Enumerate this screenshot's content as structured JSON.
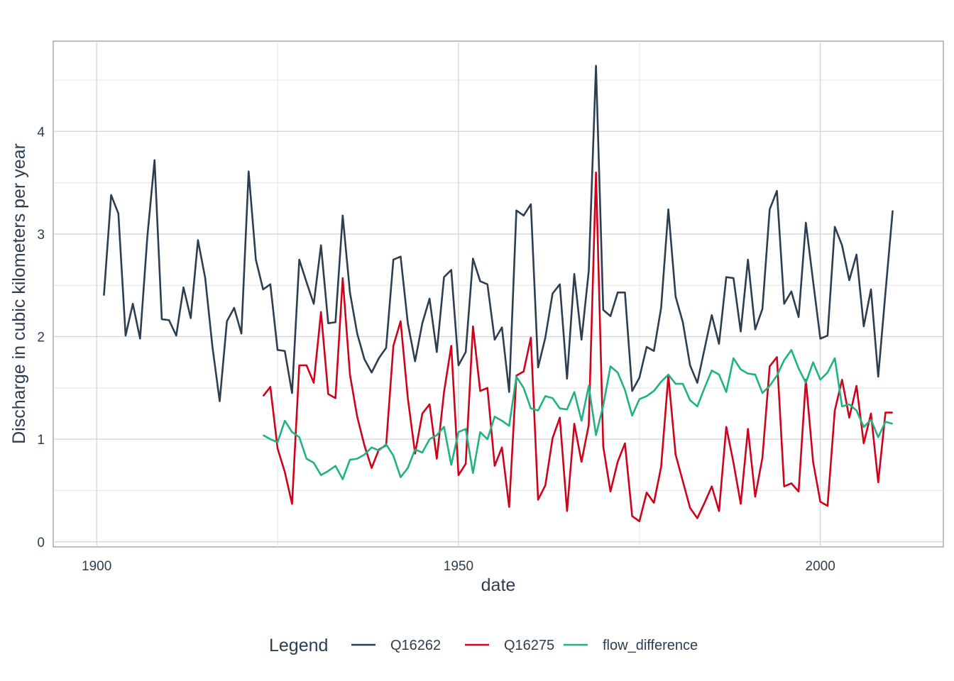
{
  "chart_data": {
    "type": "line",
    "xlabel": "date",
    "ylabel": "Discharge in cubic kilometers per year",
    "xlim": [
      1894,
      2017
    ],
    "ylim": [
      -0.05,
      4.88
    ],
    "x_ticks": [
      1900,
      1950,
      2000
    ],
    "x_tick_labels": [
      "1900",
      "1950",
      "2000"
    ],
    "y_ticks": [
      0,
      1,
      2,
      3,
      4
    ],
    "y_tick_labels": [
      "0",
      "1",
      "2",
      "3",
      "4"
    ],
    "grid": true,
    "legend": {
      "title": "Legend",
      "position": "bottom"
    },
    "series": [
      {
        "name": "Q16262",
        "color": "#2c3e50",
        "x": [
          1901,
          1902,
          1903,
          1904,
          1905,
          1906,
          1907,
          1908,
          1909,
          1910,
          1911,
          1912,
          1913,
          1914,
          1915,
          1916,
          1917,
          1918,
          1919,
          1920,
          1921,
          1922,
          1923,
          1924,
          1925,
          1926,
          1927,
          1928,
          1929,
          1930,
          1931,
          1932,
          1933,
          1934,
          1935,
          1936,
          1937,
          1938,
          1939,
          1940,
          1941,
          1942,
          1943,
          1944,
          1945,
          1946,
          1947,
          1948,
          1949,
          1950,
          1951,
          1952,
          1953,
          1954,
          1955,
          1956,
          1957,
          1958,
          1959,
          1960,
          1961,
          1962,
          1963,
          1964,
          1965,
          1966,
          1967,
          1968,
          1969,
          1970,
          1971,
          1972,
          1973,
          1974,
          1975,
          1976,
          1977,
          1978,
          1979,
          1980,
          1981,
          1982,
          1983,
          1984,
          1985,
          1986,
          1987,
          1988,
          1989,
          1990,
          1991,
          1992,
          1993,
          1994,
          1995,
          1996,
          1997,
          1998,
          1999,
          2000,
          2001,
          2002,
          2003,
          2004,
          2005,
          2006,
          2007,
          2008,
          2009,
          2010
        ],
        "values": [
          2.4,
          3.38,
          3.2,
          2.01,
          2.32,
          1.98,
          2.97,
          3.72,
          2.17,
          2.16,
          2.01,
          2.48,
          2.18,
          2.94,
          2.57,
          1.9,
          1.37,
          2.15,
          2.28,
          2.03,
          3.61,
          2.75,
          2.46,
          2.51,
          1.87,
          1.86,
          1.45,
          2.75,
          2.53,
          2.32,
          2.89,
          2.13,
          2.14,
          3.18,
          2.43,
          2.03,
          1.78,
          1.65,
          1.79,
          1.89,
          2.75,
          2.78,
          2.13,
          1.76,
          2.13,
          2.37,
          1.85,
          2.58,
          2.65,
          1.72,
          1.85,
          2.76,
          2.54,
          2.51,
          1.97,
          2.09,
          1.46,
          3.23,
          3.18,
          3.29,
          1.7,
          1.99,
          2.42,
          2.51,
          1.59,
          2.61,
          1.97,
          2.64,
          4.64,
          2.26,
          2.2,
          2.43,
          2.43,
          1.47,
          1.6,
          1.9,
          1.86,
          2.28,
          3.24,
          2.39,
          2.14,
          1.72,
          1.55,
          1.88,
          2.21,
          1.93,
          2.58,
          2.57,
          2.05,
          2.75,
          2.07,
          2.27,
          3.24,
          3.42,
          2.32,
          2.44,
          2.19,
          3.11,
          2.54,
          1.98,
          2.01,
          3.07,
          2.89,
          2.55,
          2.8,
          2.1,
          2.46,
          1.61,
          2.43,
          3.23
        ]
      },
      {
        "name": "Q16275",
        "color": "#d0021b",
        "x": [
          1923,
          1924,
          1925,
          1926,
          1927,
          1928,
          1929,
          1930,
          1931,
          1932,
          1933,
          1934,
          1935,
          1936,
          1937,
          1938,
          1939,
          1940,
          1941,
          1942,
          1943,
          1944,
          1945,
          1946,
          1947,
          1948,
          1949,
          1950,
          1951,
          1952,
          1953,
          1954,
          1955,
          1956,
          1957,
          1958,
          1959,
          1960,
          1961,
          1962,
          1963,
          1964,
          1965,
          1966,
          1967,
          1968,
          1969,
          1970,
          1971,
          1972,
          1973,
          1974,
          1975,
          1976,
          1977,
          1978,
          1979,
          1980,
          1981,
          1982,
          1983,
          1984,
          1985,
          1986,
          1987,
          1988,
          1989,
          1990,
          1991,
          1992,
          1993,
          1994,
          1995,
          1996,
          1997,
          1998,
          1999,
          2000,
          2001,
          2002,
          2003,
          2004,
          2005,
          2006,
          2007,
          2008,
          2009,
          2010
        ],
        "values": [
          1.42,
          1.51,
          0.91,
          0.68,
          0.37,
          1.72,
          1.72,
          1.55,
          2.24,
          1.44,
          1.4,
          2.57,
          1.63,
          1.22,
          0.94,
          0.72,
          0.9,
          0.94,
          1.91,
          2.15,
          1.4,
          0.86,
          1.25,
          1.34,
          0.81,
          1.46,
          1.91,
          0.65,
          0.76,
          2.1,
          1.47,
          1.5,
          0.74,
          0.92,
          0.34,
          1.62,
          1.66,
          1.99,
          0.41,
          0.55,
          1.01,
          1.21,
          0.3,
          1.15,
          0.78,
          1.14,
          3.6,
          0.93,
          0.49,
          0.78,
          0.96,
          0.25,
          0.2,
          0.48,
          0.38,
          0.73,
          1.62,
          0.85,
          0.59,
          0.33,
          0.23,
          0.38,
          0.54,
          0.3,
          1.12,
          0.77,
          0.37,
          1.1,
          0.44,
          0.82,
          1.71,
          1.8,
          0.54,
          0.57,
          0.49,
          1.58,
          0.78,
          0.39,
          0.35,
          1.28,
          1.58,
          1.21,
          1.52,
          0.96,
          1.25,
          0.58,
          1.26,
          1.26
        ]
      },
      {
        "name": "flow_difference",
        "color": "#1fb383",
        "x": [
          1923,
          1924,
          1925,
          1926,
          1927,
          1928,
          1929,
          1930,
          1931,
          1932,
          1933,
          1934,
          1935,
          1936,
          1937,
          1938,
          1939,
          1940,
          1941,
          1942,
          1943,
          1944,
          1945,
          1946,
          1947,
          1948,
          1949,
          1950,
          1951,
          1952,
          1953,
          1954,
          1955,
          1956,
          1957,
          1958,
          1959,
          1960,
          1961,
          1962,
          1963,
          1964,
          1965,
          1966,
          1967,
          1968,
          1969,
          1970,
          1971,
          1972,
          1973,
          1974,
          1975,
          1976,
          1977,
          1978,
          1979,
          1980,
          1981,
          1982,
          1983,
          1984,
          1985,
          1986,
          1987,
          1988,
          1989,
          1990,
          1991,
          1992,
          1993,
          1994,
          1995,
          1996,
          1997,
          1998,
          1999,
          2000,
          2001,
          2002,
          2003,
          2004,
          2005,
          2006,
          2007,
          2008,
          2009,
          2010
        ],
        "values": [
          1.04,
          1.0,
          0.97,
          1.18,
          1.07,
          1.02,
          0.81,
          0.77,
          0.65,
          0.69,
          0.74,
          0.61,
          0.8,
          0.81,
          0.85,
          0.92,
          0.89,
          0.95,
          0.84,
          0.63,
          0.72,
          0.9,
          0.87,
          1.0,
          1.04,
          1.12,
          0.75,
          1.07,
          1.1,
          0.67,
          1.07,
          1.0,
          1.22,
          1.18,
          1.13,
          1.61,
          1.5,
          1.3,
          1.28,
          1.42,
          1.4,
          1.3,
          1.29,
          1.46,
          1.18,
          1.52,
          1.04,
          1.33,
          1.71,
          1.65,
          1.48,
          1.23,
          1.39,
          1.42,
          1.47,
          1.56,
          1.63,
          1.54,
          1.54,
          1.38,
          1.32,
          1.5,
          1.67,
          1.63,
          1.46,
          1.79,
          1.68,
          1.64,
          1.63,
          1.45,
          1.52,
          1.62,
          1.77,
          1.87,
          1.69,
          1.55,
          1.75,
          1.58,
          1.65,
          1.79,
          1.32,
          1.34,
          1.28,
          1.12,
          1.19,
          1.02,
          1.17,
          1.15
        ]
      }
    ]
  }
}
